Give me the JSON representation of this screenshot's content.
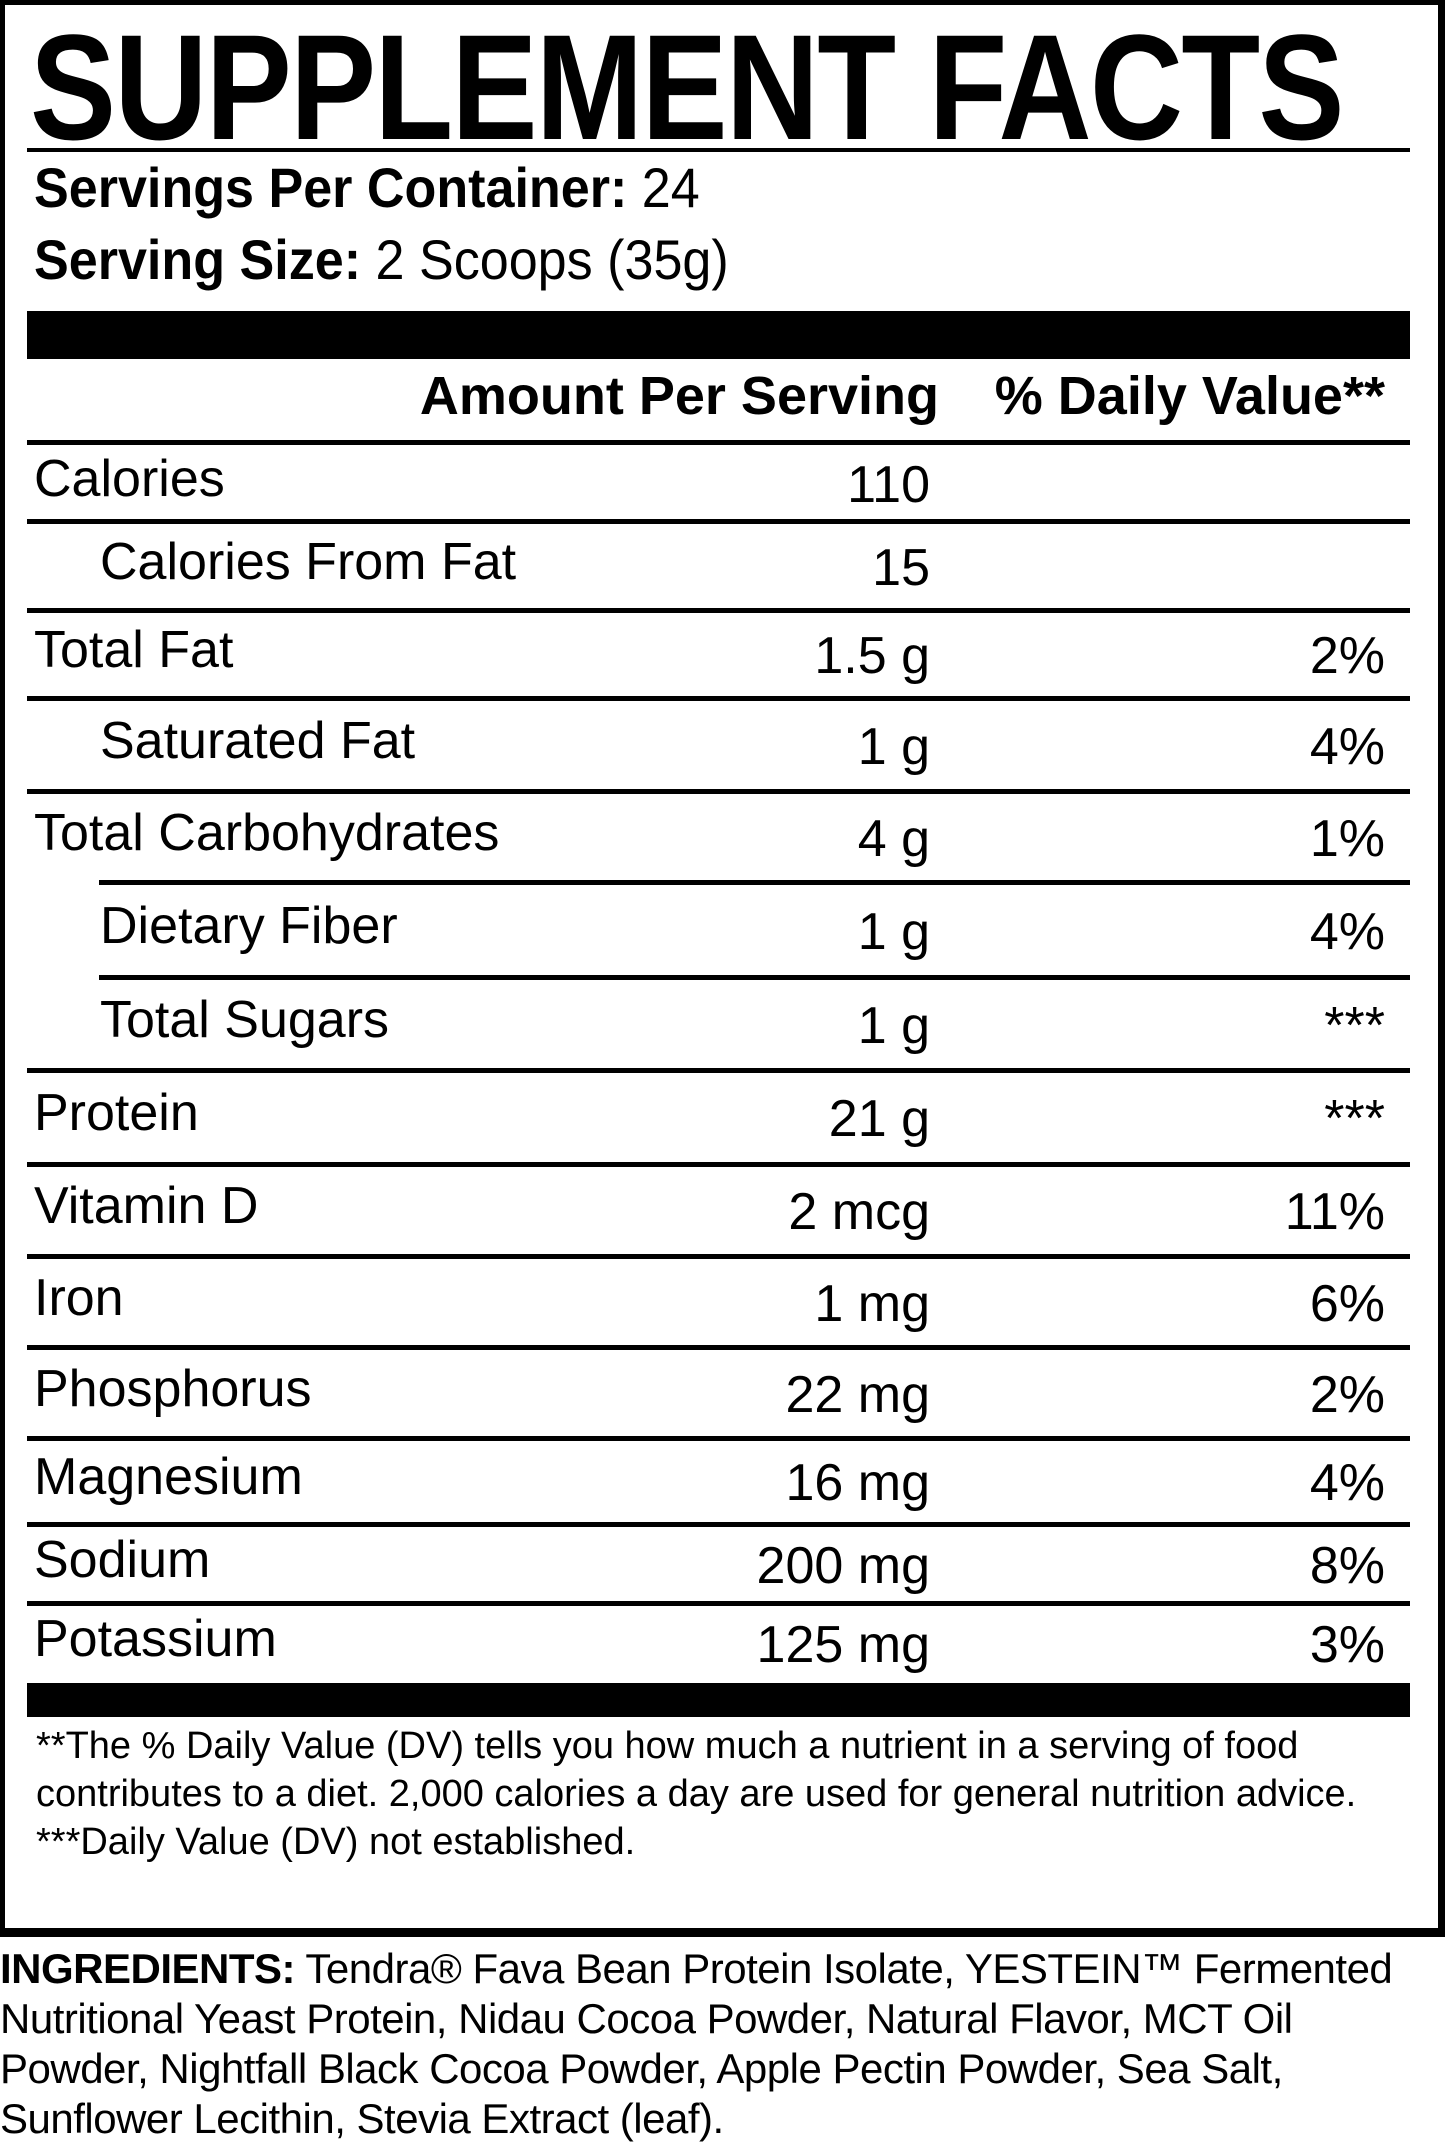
{
  "title": "SUPPLEMENT FACTS",
  "servings_per_container": {
    "label": "Servings Per Container:",
    "value": "24"
  },
  "serving_size": {
    "label": "Serving Size:",
    "value": "2 Scoops (35g)"
  },
  "columns": {
    "amount": "Amount Per Serving",
    "dv": "% Daily Value**"
  },
  "rows": [
    {
      "label": "Calories",
      "amount": "110",
      "dv": "",
      "indent": false
    },
    {
      "label": "Calories From Fat",
      "amount": "15",
      "dv": "",
      "indent": true
    },
    {
      "label": "Total Fat",
      "amount": "1.5 g",
      "dv": "2%",
      "indent": false
    },
    {
      "label": "Saturated Fat",
      "amount": "1 g",
      "dv": "4%",
      "indent": true
    },
    {
      "label": "Total Carbohydrates",
      "amount": "4 g",
      "dv": "1%",
      "indent": false
    },
    {
      "label": "Dietary Fiber",
      "amount": "1 g",
      "dv": "4%",
      "indent": true
    },
    {
      "label": "Total Sugars",
      "amount": "1 g",
      "dv": "***",
      "indent": true
    },
    {
      "label": "Protein",
      "amount": "21 g",
      "dv": "***",
      "indent": false
    },
    {
      "label": "Vitamin D",
      "amount": "2 mcg",
      "dv": "11%",
      "indent": false
    },
    {
      "label": "Iron",
      "amount": "1 mg",
      "dv": "6%",
      "indent": false
    },
    {
      "label": "Phosphorus",
      "amount": "22 mg",
      "dv": "2%",
      "indent": false
    },
    {
      "label": "Magnesium",
      "amount": "16 mg",
      "dv": "4%",
      "indent": false
    },
    {
      "label": "Sodium",
      "amount": "200 mg",
      "dv": "8%",
      "indent": false
    },
    {
      "label": "Potassium",
      "amount": "125 mg",
      "dv": "3%",
      "indent": false
    }
  ],
  "footnotes": {
    "dv_note": "**The % Daily Value (DV) tells you how much a nutrient in a serving of food contributes to a diet. 2,000 calories a day are used for general nutrition advice.",
    "not_established": "***Daily Value (DV) not established."
  },
  "ingredients": {
    "label": "INGREDIENTS:",
    "text": " Tendra® Fava Bean Protein Isolate, YESTEIN™ Fermented Nutritional Yeast Protein, Nidau Cocoa Powder, Natural Flavor, MCT Oil Powder, Nightfall Black Cocoa Powder, Apple Pectin Powder, Sea Salt, Sunflower Lecithin, Stevia Extract (leaf)."
  }
}
